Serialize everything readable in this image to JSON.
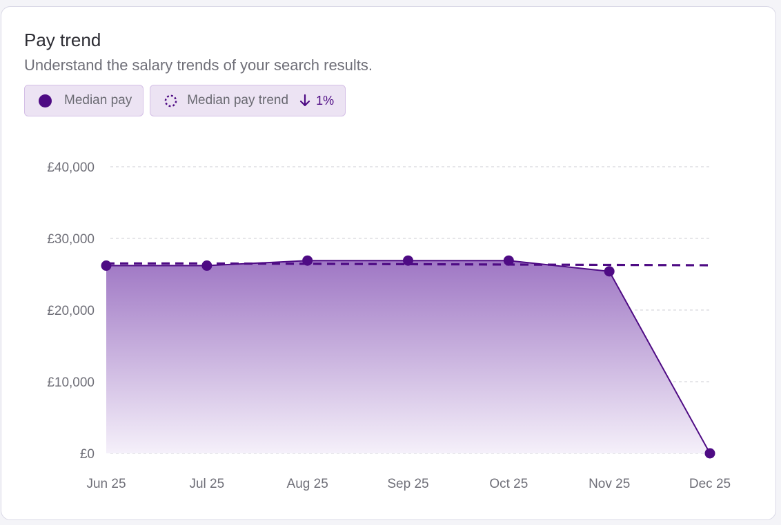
{
  "header": {
    "title": "Pay trend",
    "subtitle": "Understand the salary trends of your search results."
  },
  "legend": {
    "median_pay_label": "Median pay",
    "median_pay_trend_label": "Median pay trend",
    "trend_direction": "down",
    "trend_value": "1%"
  },
  "colors": {
    "series": "#4e0b84",
    "area_top": "#9f77c4",
    "area_bottom": "#f5f0fa",
    "grid": "#d6d6dc"
  },
  "chart_data": {
    "type": "area",
    "categories": [
      "Jun 25",
      "Jul 25",
      "Aug 25",
      "Sep 25",
      "Oct 25",
      "Nov 25",
      "Dec 25"
    ],
    "series": [
      {
        "name": "Median pay",
        "values": [
          26200,
          26200,
          26900,
          26900,
          26900,
          25400,
          0
        ]
      },
      {
        "name": "Median pay trend",
        "style": "dashed",
        "values": [
          26500,
          26500,
          26450,
          26400,
          26350,
          26300,
          26250
        ]
      }
    ],
    "ylim": [
      0,
      40000
    ],
    "yticks": [
      0,
      10000,
      20000,
      30000,
      40000
    ],
    "ytick_labels": [
      "£0",
      "£10,000",
      "£20,000",
      "£30,000",
      "£40,000"
    ],
    "grid": true,
    "grid_style": "dashed"
  }
}
